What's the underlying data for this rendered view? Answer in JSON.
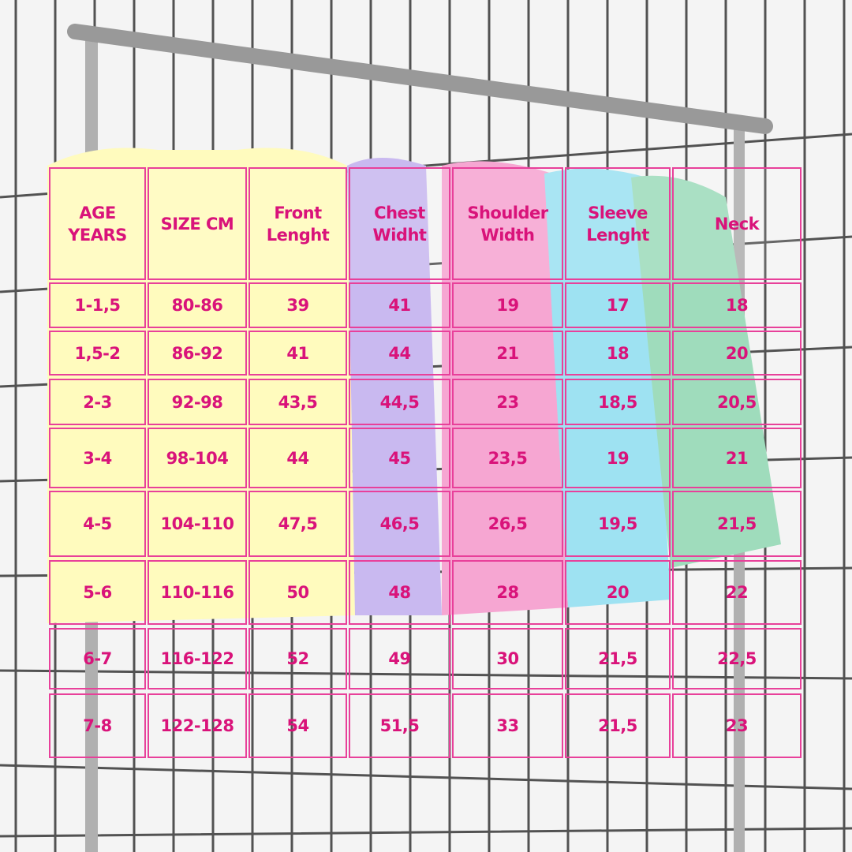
{
  "table": {
    "header": [
      "AGE YEARS",
      "SIZE CM",
      "Front Lenght",
      "Chest Widht",
      "Shoulder Width",
      "Sleeve Lenght",
      "Neck"
    ],
    "rows": [
      [
        "1-1,5",
        "80-86",
        "39",
        "41",
        "19",
        "17",
        "18"
      ],
      [
        "1,5-2",
        "86-92",
        "41",
        "44",
        "21",
        "18",
        "20"
      ],
      [
        "2-3",
        "92-98",
        "43,5",
        "44,5",
        "23",
        "18,5",
        "20,5"
      ],
      [
        "3-4",
        "98-104",
        "44",
        "45",
        "23,5",
        "19",
        "21"
      ],
      [
        "4-5",
        "104-110",
        "47,5",
        "46,5",
        "26,5",
        "19,5",
        "21,5"
      ],
      [
        "5-6",
        "110-116",
        "50",
        "48",
        "28",
        "20",
        "22"
      ],
      [
        "6-7",
        "116-122",
        "52",
        "49",
        "30",
        "21,5",
        "22,5"
      ],
      [
        "7-8",
        "122-128",
        "54",
        "51,5",
        "33",
        "21,5",
        "23"
      ]
    ]
  }
}
